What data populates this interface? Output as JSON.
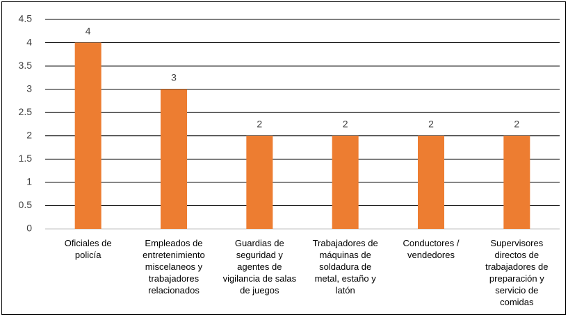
{
  "chart_data": {
    "type": "bar",
    "categories": [
      "Oficiales de policía",
      "Empleados de entretenimiento miscelaneos y trabajadores relacionados",
      "Guardias de seguridad y agentes de vigilancia de salas de juegos",
      "Trabajadores de máquinas de soldadura de metal, estaño y latón",
      "Conductores / vendedores",
      "Supervisores directos de trabajadores de preparación y servicio de comidas"
    ],
    "values": [
      4,
      3,
      2,
      2,
      2,
      2
    ],
    "color": "#ed7d31",
    "ylim": [
      0,
      4.5
    ],
    "yticks": [
      0,
      0.5,
      1,
      1.5,
      2,
      2.5,
      3,
      3.5,
      4,
      4.5
    ],
    "grid": true
  }
}
